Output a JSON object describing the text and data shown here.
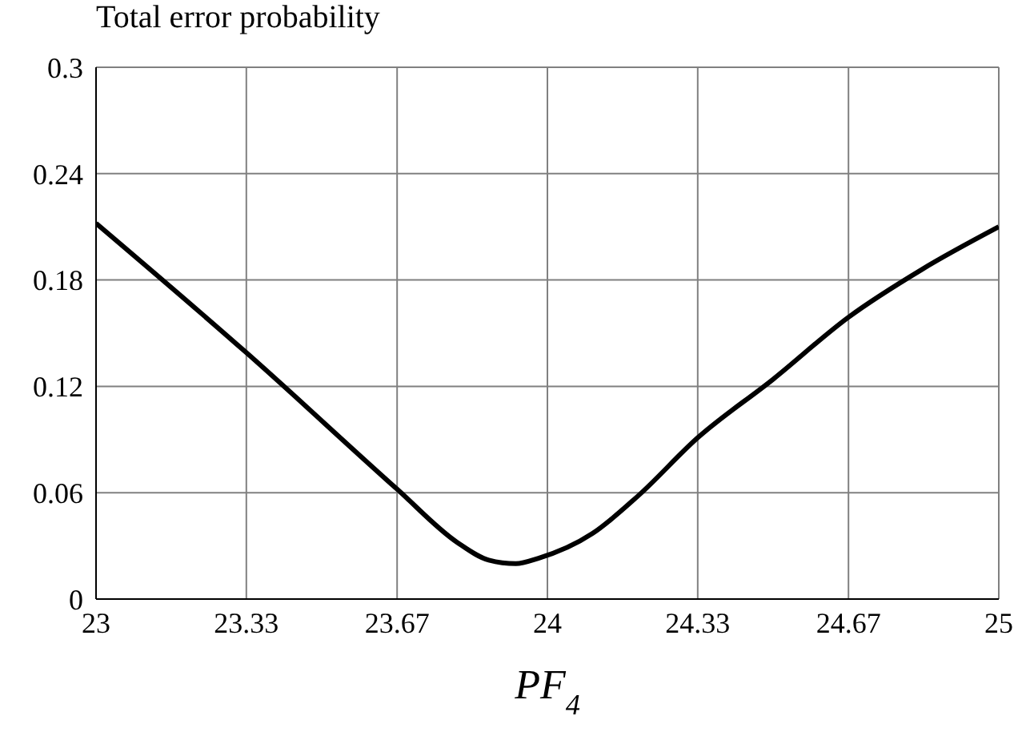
{
  "chart_data": {
    "type": "line",
    "ylabel": "Total error probability",
    "xlabel": "PF$_{4}$",
    "x": [
      23,
      23.333,
      23.667,
      23.8,
      23.87,
      23.93,
      23.98,
      24.1,
      24.2,
      24.333,
      24.5,
      24.667,
      24.83,
      25
    ],
    "series": [
      {
        "color": "#000000",
        "values": [
          0.212,
          0.139,
          0.062,
          0.032,
          0.022,
          0.02,
          0.023,
          0.037,
          0.058,
          0.091,
          0.124,
          0.159,
          0.186,
          0.21
        ]
      }
    ],
    "xlim": [
      23,
      25
    ],
    "xticks": [
      23,
      {
        "value": 23.333,
        "label": "23.33"
      },
      {
        "value": 23.667,
        "label": "23.67"
      },
      24,
      {
        "value": 24.333,
        "label": "24.33"
      },
      {
        "value": 24.667,
        "label": "24.67"
      },
      25
    ],
    "ylim": [
      0,
      0.3
    ],
    "yticks": [
      0,
      0.06,
      0.12,
      0.18,
      0.24,
      0.3
    ],
    "grid": true,
    "marker": "none",
    "line_style": "solid",
    "legend": false
  }
}
